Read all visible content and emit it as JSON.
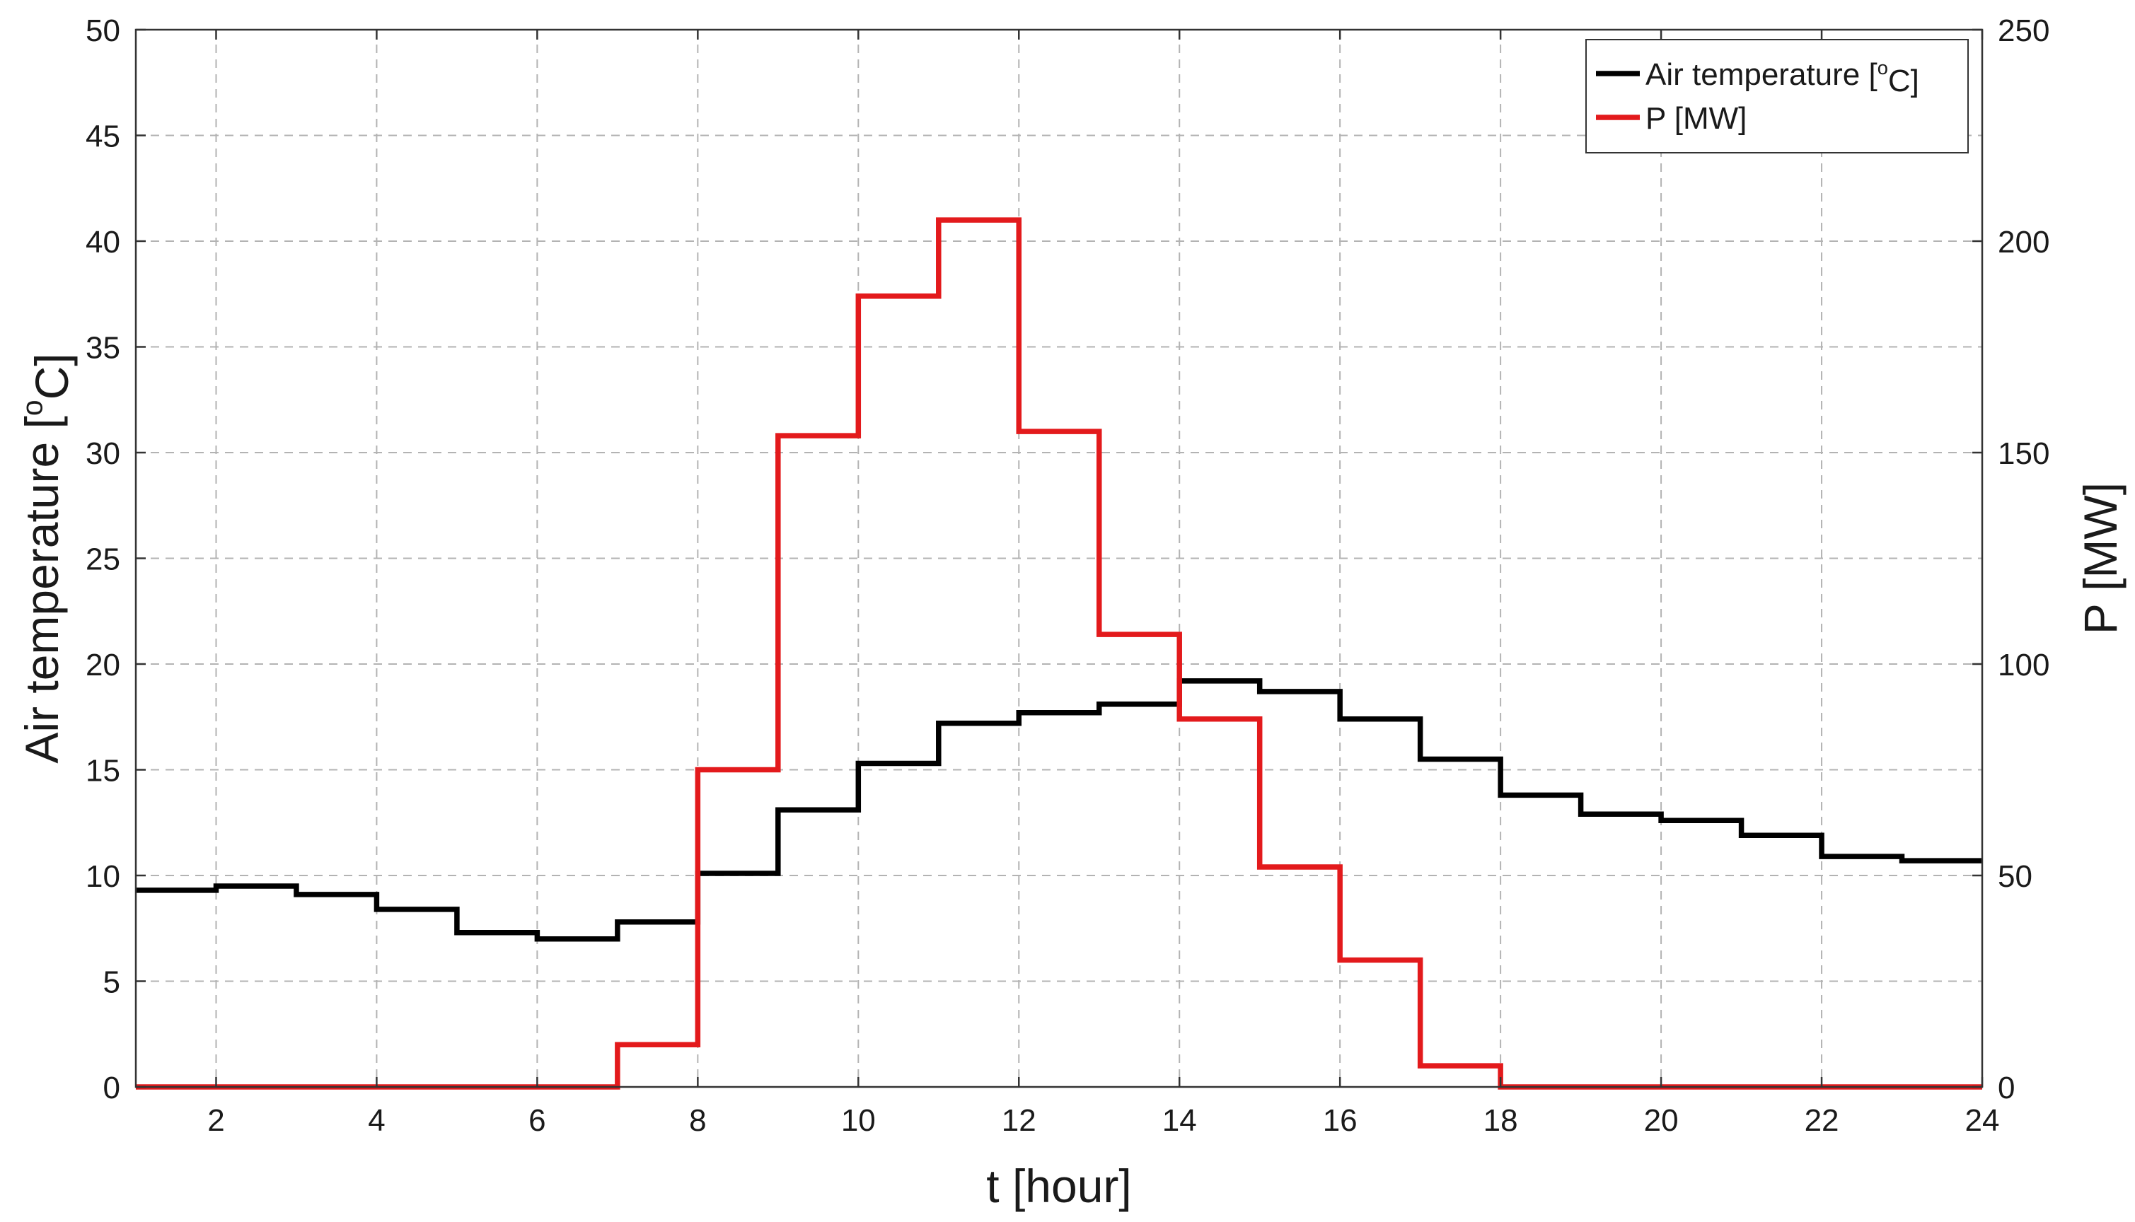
{
  "chart_data": {
    "type": "line",
    "step": "post",
    "x": [
      1,
      2,
      3,
      4,
      5,
      6,
      7,
      8,
      9,
      10,
      11,
      12,
      13,
      14,
      15,
      16,
      17,
      18,
      19,
      20,
      21,
      22,
      23,
      24
    ],
    "xlabel": "t [hour]",
    "xlim": [
      1,
      24
    ],
    "xticks": [
      2,
      4,
      6,
      8,
      10,
      12,
      14,
      16,
      18,
      20,
      22,
      24
    ],
    "ylabel_left": {
      "main": "Air temperature [",
      "sup": "o",
      "tail": "C]"
    },
    "ylim_left": [
      0,
      50
    ],
    "yticks_left": [
      0,
      5,
      10,
      15,
      20,
      25,
      30,
      35,
      40,
      45,
      50
    ],
    "ylabel_right": "P [MW]",
    "ylim_right": [
      0,
      250
    ],
    "yticks_right": [
      0,
      50,
      100,
      150,
      200,
      250
    ],
    "grid": true,
    "legend_position": "top-right",
    "series": [
      {
        "name": {
          "main": "Air temperature [",
          "sup": "o",
          "tail": "C]"
        },
        "axis": "left",
        "color": "#000000",
        "values": [
          9.3,
          9.5,
          9.1,
          8.4,
          7.3,
          7.0,
          7.8,
          10.1,
          13.1,
          15.3,
          17.2,
          17.7,
          18.1,
          19.2,
          18.7,
          17.4,
          15.5,
          13.8,
          12.9,
          12.6,
          11.9,
          10.9,
          10.7,
          10.7
        ]
      },
      {
        "name": {
          "main": "P [MW]"
        },
        "axis": "right",
        "color": "#e31a1c",
        "values": [
          0,
          0,
          0,
          0,
          0,
          0,
          10,
          75,
          154,
          187,
          205,
          155,
          107,
          87,
          52,
          30,
          5,
          0,
          0,
          0,
          0,
          0,
          0,
          0
        ]
      }
    ]
  }
}
